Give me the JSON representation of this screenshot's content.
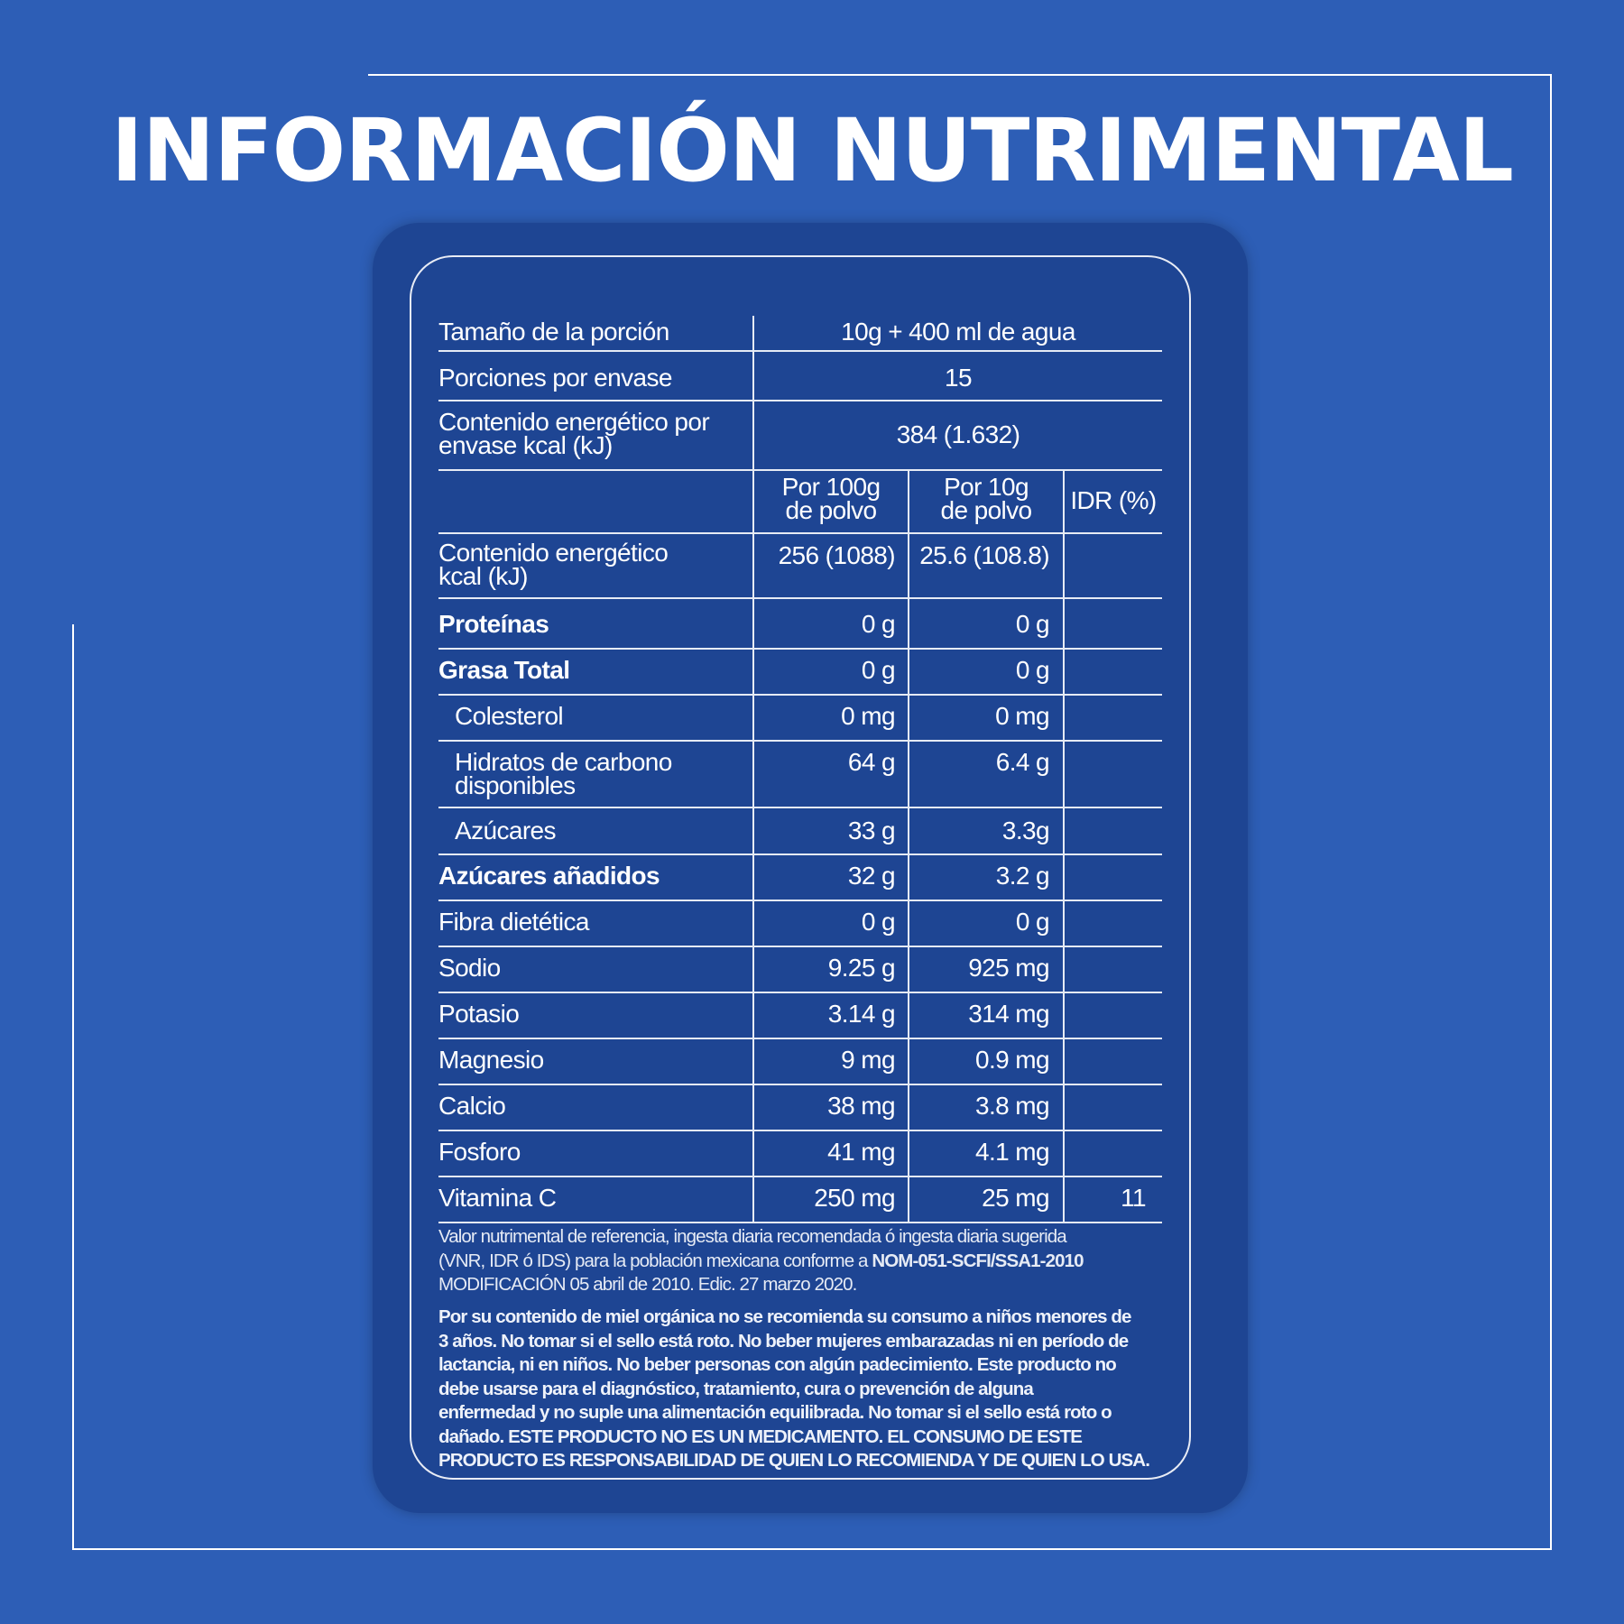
{
  "title": "INFORMACIÓN NUTRIMENTAL",
  "summary": {
    "serving_size_label": "Tamaño de la porción",
    "serving_size_value": "10g + 400 ml de agua",
    "servings_label": "Porciones por envase",
    "servings_value": "15",
    "energy_package_label_1": "Contenido energético por",
    "energy_package_label_2": "envase kcal (kJ)",
    "energy_package_value": "384 (1.632)"
  },
  "headers": {
    "per100_1": "Por 100g",
    "per100_2": "de polvo",
    "per10_1": "Por 10g",
    "per10_2": "de polvo",
    "idr": "IDR (%)"
  },
  "energy_row": {
    "label_1": "Contenido energético",
    "label_2": "kcal (kJ)",
    "per100": "256 (1088)",
    "per10": "25.6 (108.8)",
    "idr": ""
  },
  "rows": [
    {
      "label": "Proteínas",
      "per100": "0 g",
      "per10": "0 g",
      "idr": ""
    },
    {
      "label": "Grasa Total",
      "per100": "0 g",
      "per10": "0 g",
      "idr": ""
    },
    {
      "label": "Colesterol",
      "per100": "0 mg",
      "per10": "0 mg",
      "idr": ""
    },
    {
      "label_1": "Hidratos de carbono",
      "label_2": "disponibles",
      "per100": "64 g",
      "per10": "6.4 g",
      "idr": ""
    },
    {
      "label": "Azúcares",
      "per100": "33 g",
      "per10": "3.3g",
      "idr": ""
    },
    {
      "label": "Azúcares añadidos",
      "per100": "32 g",
      "per10": "3.2 g",
      "idr": ""
    },
    {
      "label": "Fibra dietética",
      "per100": "0 g",
      "per10": "0 g",
      "idr": ""
    },
    {
      "label": "Sodio",
      "per100": "9.25 g",
      "per10": "925 mg",
      "idr": ""
    },
    {
      "label": "Potasio",
      "per100": "3.14 g",
      "per10": "314 mg",
      "idr": ""
    },
    {
      "label": "Magnesio",
      "per100": "9 mg",
      "per10": "0.9 mg",
      "idr": ""
    },
    {
      "label": "Calcio",
      "per100": "38 mg",
      "per10": "3.8 mg",
      "idr": ""
    },
    {
      "label": "Fosforo",
      "per100": "41 mg",
      "per10": "4.1 mg",
      "idr": ""
    },
    {
      "label": "Vitamina C",
      "per100": "250 mg",
      "per10": "25 mg",
      "idr": "11"
    }
  ],
  "footnote": {
    "line1": "Valor nutrimental de referencia, ingesta diaria recomendada ó ingesta diaria sugerida",
    "line2_a": "(VNR, IDR ó IDS) para la población mexicana conforme a ",
    "line2_b": "NOM-051-SCFI/SSA1-2010",
    "line3": "MODIFICACIÓN 05 abril de 2010. Edic. 27 marzo 2020."
  },
  "warning": {
    "line1": "Por su contenido de miel orgánica no se recomienda su consumo a niños menores de",
    "line2": "3 años. No tomar si el sello está roto. No beber mujeres embarazadas ni en período de",
    "line3": "lactancia, ni en niños. No beber personas con algún padecimiento. Este producto no",
    "line4": "debe usarse para el diagnóstico, tratamiento, cura o prevención de alguna",
    "line5": "enfermedad y no suple una alimentación equilibrada. No tomar si el sello está roto o",
    "line6": "dañado. ESTE PRODUCTO NO ES UN MEDICAMENTO. EL CONSUMO DE ESTE",
    "line7": "PRODUCTO ES RESPONSABILIDAD DE QUIEN LO RECOMIENDA Y DE QUIEN LO USA."
  }
}
